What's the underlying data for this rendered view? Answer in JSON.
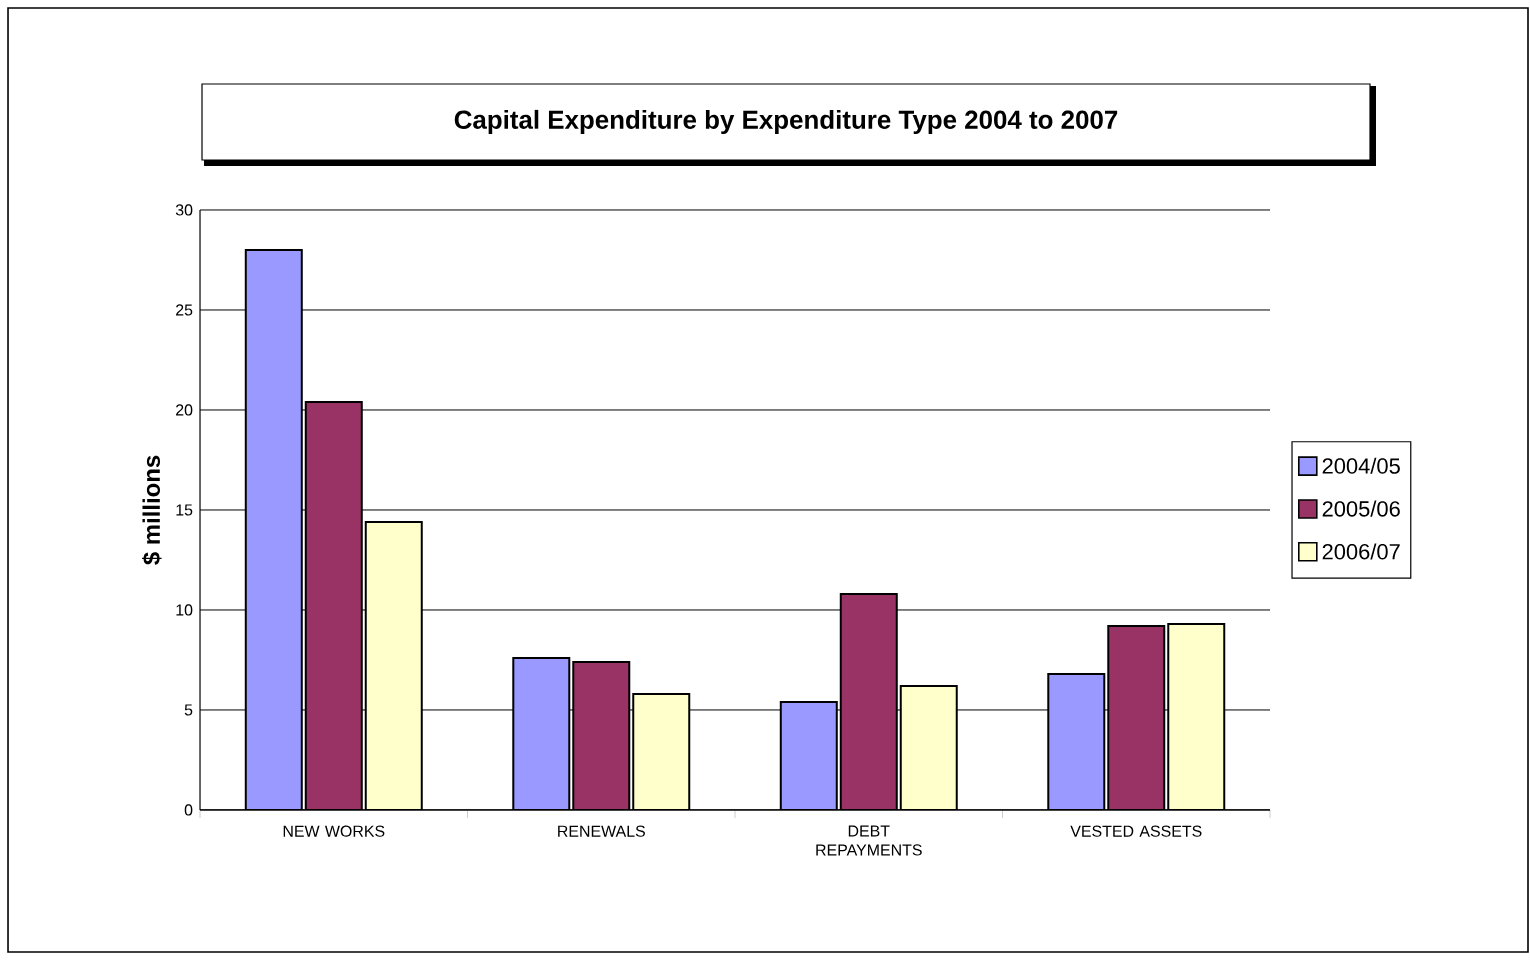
{
  "chart_data": {
    "type": "bar",
    "title": "Capital Expenditure by Expenditure Type 2004 to 2007",
    "ylabel": "$ millions",
    "categories": [
      "NEW WORKS",
      "RENEWALS",
      "DEBT REPAYMENTS",
      "VESTED ASSETS"
    ],
    "series": [
      {
        "name": "2004/05",
        "color": "#9999ff",
        "values": [
          28.0,
          7.6,
          5.4,
          6.8
        ]
      },
      {
        "name": "2005/06",
        "color": "#993366",
        "values": [
          20.4,
          7.4,
          10.8,
          9.2
        ]
      },
      {
        "name": "2006/07",
        "color": "#ffffcc",
        "values": [
          14.4,
          5.8,
          6.2,
          9.3
        ]
      }
    ],
    "ylim": [
      0,
      30
    ],
    "yticks": [
      0,
      5,
      10,
      15,
      20,
      25,
      30
    ],
    "grid": "y",
    "legend": "right"
  }
}
